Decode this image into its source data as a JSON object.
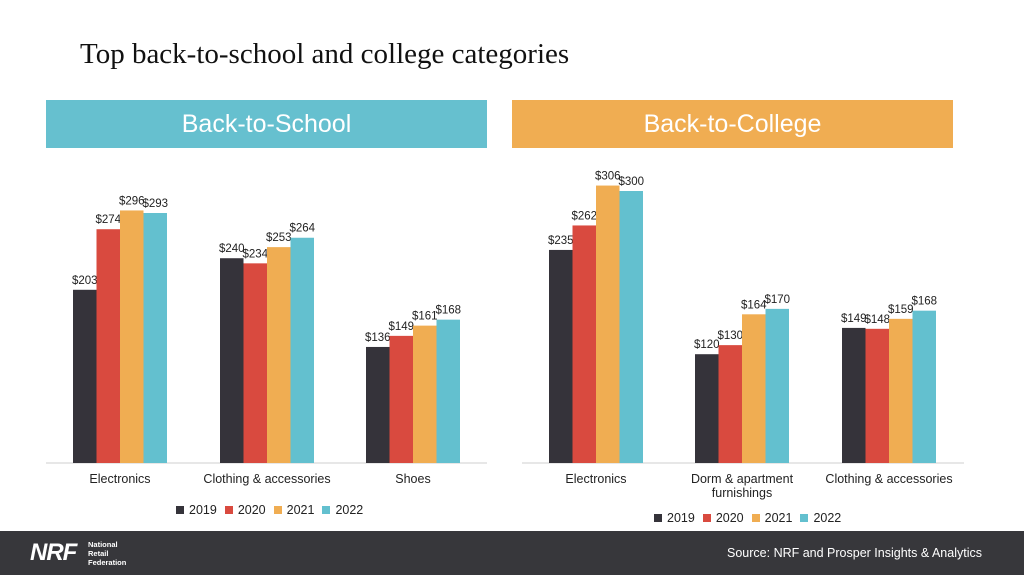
{
  "title": "Top back-to-school and college categories",
  "colors": {
    "2019": "#35333a",
    "2020": "#d94a3f",
    "2021": "#f0ad52",
    "2022": "#63c0cf"
  },
  "panels": [
    {
      "banner": "Back-to-School",
      "banner_color": "#66c0cf"
    },
    {
      "banner": "Back-to-College",
      "banner_color": "#f0ad52"
    }
  ],
  "chart_data": [
    {
      "type": "bar",
      "title": "Back-to-School",
      "categories": [
        [
          "Electronics"
        ],
        [
          "Clothing & accessories"
        ],
        [
          "Shoes"
        ]
      ],
      "series": [
        {
          "name": "2019",
          "values": [
            203,
            240,
            136
          ],
          "labels": [
            "$203",
            "$240",
            "$136"
          ]
        },
        {
          "name": "2020",
          "values": [
            274,
            234,
            149
          ],
          "labels": [
            "$274",
            "$234",
            "$149"
          ]
        },
        {
          "name": "2021",
          "values": [
            296,
            253,
            161
          ],
          "labels": [
            "$296",
            "$253",
            "$161"
          ]
        },
        {
          "name": "2022",
          "values": [
            293,
            264,
            168
          ],
          "labels": [
            "$293",
            "$264",
            "$168"
          ]
        }
      ],
      "ylim": [
        0,
        300
      ],
      "grid": false,
      "legend": "bottom"
    },
    {
      "type": "bar",
      "title": "Back-to-College",
      "categories": [
        [
          "Electronics"
        ],
        [
          "Dorm & apartment",
          "furnishings"
        ],
        [
          "Clothing & accessories"
        ]
      ],
      "series": [
        {
          "name": "2019",
          "values": [
            235,
            120,
            149
          ],
          "labels": [
            "$235",
            "$120",
            "$149"
          ]
        },
        {
          "name": "2020",
          "values": [
            262,
            130,
            148
          ],
          "labels": [
            "$262",
            "$130",
            "$148"
          ]
        },
        {
          "name": "2021",
          "values": [
            306,
            164,
            159
          ],
          "labels": [
            "$306",
            "$164",
            "$159"
          ]
        },
        {
          "name": "2022",
          "values": [
            300,
            170,
            168
          ],
          "labels": [
            "$300",
            "$170",
            "$168"
          ]
        }
      ],
      "ylim": [
        0,
        300
      ],
      "grid": false,
      "legend": "bottom"
    }
  ],
  "footer": {
    "logo": "NRF",
    "logo_sub": [
      "National",
      "Retail",
      "Federation"
    ],
    "source": "Source: NRF and Prosper Insights & Analytics"
  }
}
